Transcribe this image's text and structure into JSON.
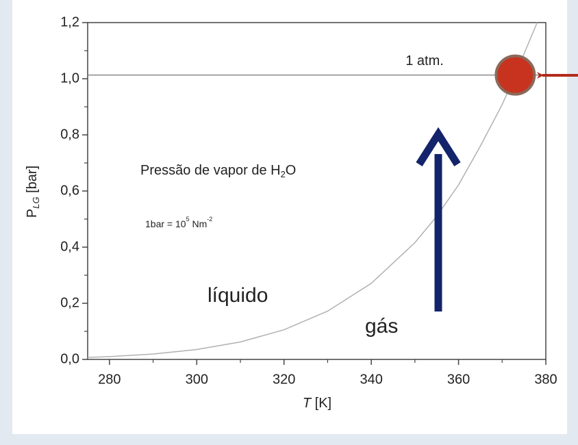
{
  "chart_data": {
    "type": "line",
    "xlabel": [
      "T",
      " [K]"
    ],
    "ylabel": [
      "P",
      "LG",
      " [bar]"
    ],
    "series": [
      {
        "color": "#b0b0b0",
        "x": [
          275,
          280,
          290,
          300,
          310,
          320,
          330,
          340,
          350,
          355,
          360,
          365,
          370,
          373,
          375,
          378
        ],
        "values": [
          0.007,
          0.0099,
          0.0192,
          0.0354,
          0.0623,
          0.1055,
          0.172,
          0.271,
          0.416,
          0.51,
          0.622,
          0.76,
          0.908,
          1.013,
          1.088,
          1.2
        ]
      }
    ],
    "xlim": [
      275,
      380
    ],
    "ylim": [
      0,
      1.2
    ],
    "xticks": [
      280,
      300,
      320,
      340,
      360,
      380
    ],
    "xminorticks": [
      290,
      310,
      330,
      350,
      370
    ],
    "yticks": [
      {
        "value": 0,
        "label": "0,0"
      },
      {
        "value": 0.2,
        "label": "0,2"
      },
      {
        "value": 0.4,
        "label": "0,4"
      },
      {
        "value": 0.6,
        "label": "0,6"
      },
      {
        "value": 0.8,
        "label": "0,8"
      },
      {
        "value": 1.0,
        "label": "1,0"
      },
      {
        "value": 1.2,
        "label": "1,2"
      }
    ],
    "yminorticks": [
      0.1,
      0.3,
      0.5,
      0.7,
      0.9,
      1.1
    ],
    "reference_line": {
      "y": 1.013,
      "label": "1 atm.",
      "color": "#888888"
    },
    "highlight_point": {
      "x": 373,
      "y": 1.013,
      "color": "#c8331f"
    },
    "annotations": {
      "title": [
        "Pressão de vapor de H",
        "2",
        "O"
      ],
      "unit": [
        "1bar = 10",
        "5",
        " Nm",
        "-2"
      ],
      "liquid": "líquido",
      "gas": "gás"
    }
  }
}
